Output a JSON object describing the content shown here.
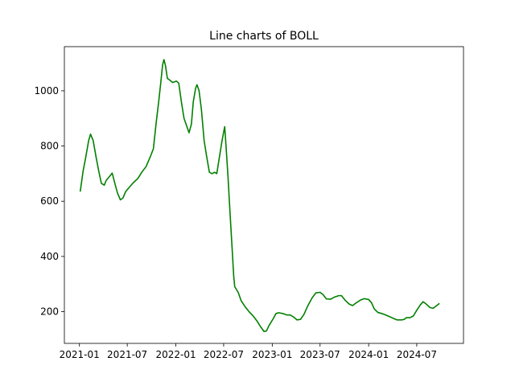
{
  "chart_data": {
    "type": "line",
    "title": "Line charts of BOLL",
    "xlabel": "",
    "ylabel": "",
    "grid": false,
    "legend": "none",
    "xlim": [
      "2020-11-05",
      "2024-12-25"
    ],
    "ylim": [
      85,
      1160
    ],
    "x_ticks": [
      "2021-01",
      "2021-07",
      "2022-01",
      "2022-07",
      "2023-01",
      "2023-07",
      "2024-01",
      "2024-07"
    ],
    "y_ticks": [
      200,
      400,
      600,
      800,
      1000
    ],
    "series": [
      {
        "color": "#008000",
        "points": [
          [
            "2021-01-04",
            635
          ],
          [
            "2021-01-15",
            710
          ],
          [
            "2021-01-25",
            760
          ],
          [
            "2021-02-05",
            820
          ],
          [
            "2021-02-12",
            843
          ],
          [
            "2021-02-22",
            820
          ],
          [
            "2021-03-05",
            760
          ],
          [
            "2021-03-15",
            710
          ],
          [
            "2021-03-25",
            665
          ],
          [
            "2021-04-05",
            658
          ],
          [
            "2021-04-12",
            675
          ],
          [
            "2021-04-25",
            690
          ],
          [
            "2021-05-05",
            702
          ],
          [
            "2021-05-15",
            665
          ],
          [
            "2021-05-25",
            630
          ],
          [
            "2021-06-05",
            605
          ],
          [
            "2021-06-15",
            612
          ],
          [
            "2021-06-25",
            635
          ],
          [
            "2021-07-10",
            652
          ],
          [
            "2021-07-25",
            668
          ],
          [
            "2021-08-10",
            682
          ],
          [
            "2021-08-25",
            705
          ],
          [
            "2021-09-10",
            725
          ],
          [
            "2021-09-25",
            758
          ],
          [
            "2021-10-08",
            790
          ],
          [
            "2021-10-18",
            880
          ],
          [
            "2021-10-28",
            960
          ],
          [
            "2021-11-05",
            1030
          ],
          [
            "2021-11-12",
            1095
          ],
          [
            "2021-11-17",
            1113
          ],
          [
            "2021-11-23",
            1090
          ],
          [
            "2021-11-30",
            1045
          ],
          [
            "2021-12-10",
            1038
          ],
          [
            "2021-12-20",
            1030
          ],
          [
            "2022-01-03",
            1035
          ],
          [
            "2022-01-12",
            1028
          ],
          [
            "2022-01-22",
            960
          ],
          [
            "2022-02-01",
            900
          ],
          [
            "2022-02-12",
            870
          ],
          [
            "2022-02-20",
            848
          ],
          [
            "2022-03-01",
            880
          ],
          [
            "2022-03-08",
            960
          ],
          [
            "2022-03-17",
            1010
          ],
          [
            "2022-03-22",
            1022
          ],
          [
            "2022-03-30",
            1000
          ],
          [
            "2022-04-08",
            930
          ],
          [
            "2022-04-18",
            820
          ],
          [
            "2022-04-28",
            760
          ],
          [
            "2022-05-08",
            705
          ],
          [
            "2022-05-18",
            700
          ],
          [
            "2022-05-28",
            705
          ],
          [
            "2022-06-05",
            700
          ],
          [
            "2022-06-15",
            760
          ],
          [
            "2022-06-25",
            820
          ],
          [
            "2022-07-05",
            870
          ],
          [
            "2022-07-10",
            800
          ],
          [
            "2022-07-18",
            680
          ],
          [
            "2022-07-25",
            560
          ],
          [
            "2022-08-02",
            430
          ],
          [
            "2022-08-08",
            330
          ],
          [
            "2022-08-12",
            290
          ],
          [
            "2022-08-25",
            270
          ],
          [
            "2022-09-05",
            240
          ],
          [
            "2022-09-20",
            218
          ],
          [
            "2022-10-05",
            200
          ],
          [
            "2022-10-20",
            185
          ],
          [
            "2022-11-05",
            165
          ],
          [
            "2022-11-18",
            145
          ],
          [
            "2022-12-01",
            128
          ],
          [
            "2022-12-10",
            130
          ],
          [
            "2022-12-20",
            150
          ],
          [
            "2023-01-05",
            175
          ],
          [
            "2023-01-15",
            193
          ],
          [
            "2023-01-25",
            196
          ],
          [
            "2023-02-10",
            193
          ],
          [
            "2023-02-25",
            188
          ],
          [
            "2023-03-10",
            188
          ],
          [
            "2023-03-22",
            181
          ],
          [
            "2023-04-05",
            170
          ],
          [
            "2023-04-18",
            172
          ],
          [
            "2023-05-01",
            190
          ],
          [
            "2023-05-15",
            220
          ],
          [
            "2023-06-01",
            250
          ],
          [
            "2023-06-15",
            268
          ],
          [
            "2023-07-01",
            270
          ],
          [
            "2023-07-12",
            262
          ],
          [
            "2023-07-25",
            246
          ],
          [
            "2023-08-10",
            245
          ],
          [
            "2023-08-25",
            253
          ],
          [
            "2023-09-10",
            258
          ],
          [
            "2023-09-20",
            258
          ],
          [
            "2023-10-05",
            240
          ],
          [
            "2023-10-20",
            227
          ],
          [
            "2023-11-01",
            222
          ],
          [
            "2023-11-15",
            232
          ],
          [
            "2023-12-01",
            242
          ],
          [
            "2023-12-15",
            247
          ],
          [
            "2024-01-01",
            244
          ],
          [
            "2024-01-12",
            232
          ],
          [
            "2024-01-22",
            210
          ],
          [
            "2024-02-05",
            197
          ],
          [
            "2024-02-20",
            193
          ],
          [
            "2024-03-05",
            188
          ],
          [
            "2024-03-20",
            182
          ],
          [
            "2024-04-05",
            175
          ],
          [
            "2024-04-18",
            170
          ],
          [
            "2024-05-05",
            170
          ],
          [
            "2024-05-15",
            172
          ],
          [
            "2024-05-22",
            178
          ],
          [
            "2024-06-05",
            178
          ],
          [
            "2024-06-18",
            184
          ],
          [
            "2024-07-01",
            205
          ],
          [
            "2024-07-15",
            225
          ],
          [
            "2024-07-25",
            236
          ],
          [
            "2024-08-05",
            228
          ],
          [
            "2024-08-20",
            215
          ],
          [
            "2024-09-01",
            212
          ],
          [
            "2024-09-12",
            220
          ],
          [
            "2024-09-25",
            230
          ]
        ]
      }
    ]
  }
}
